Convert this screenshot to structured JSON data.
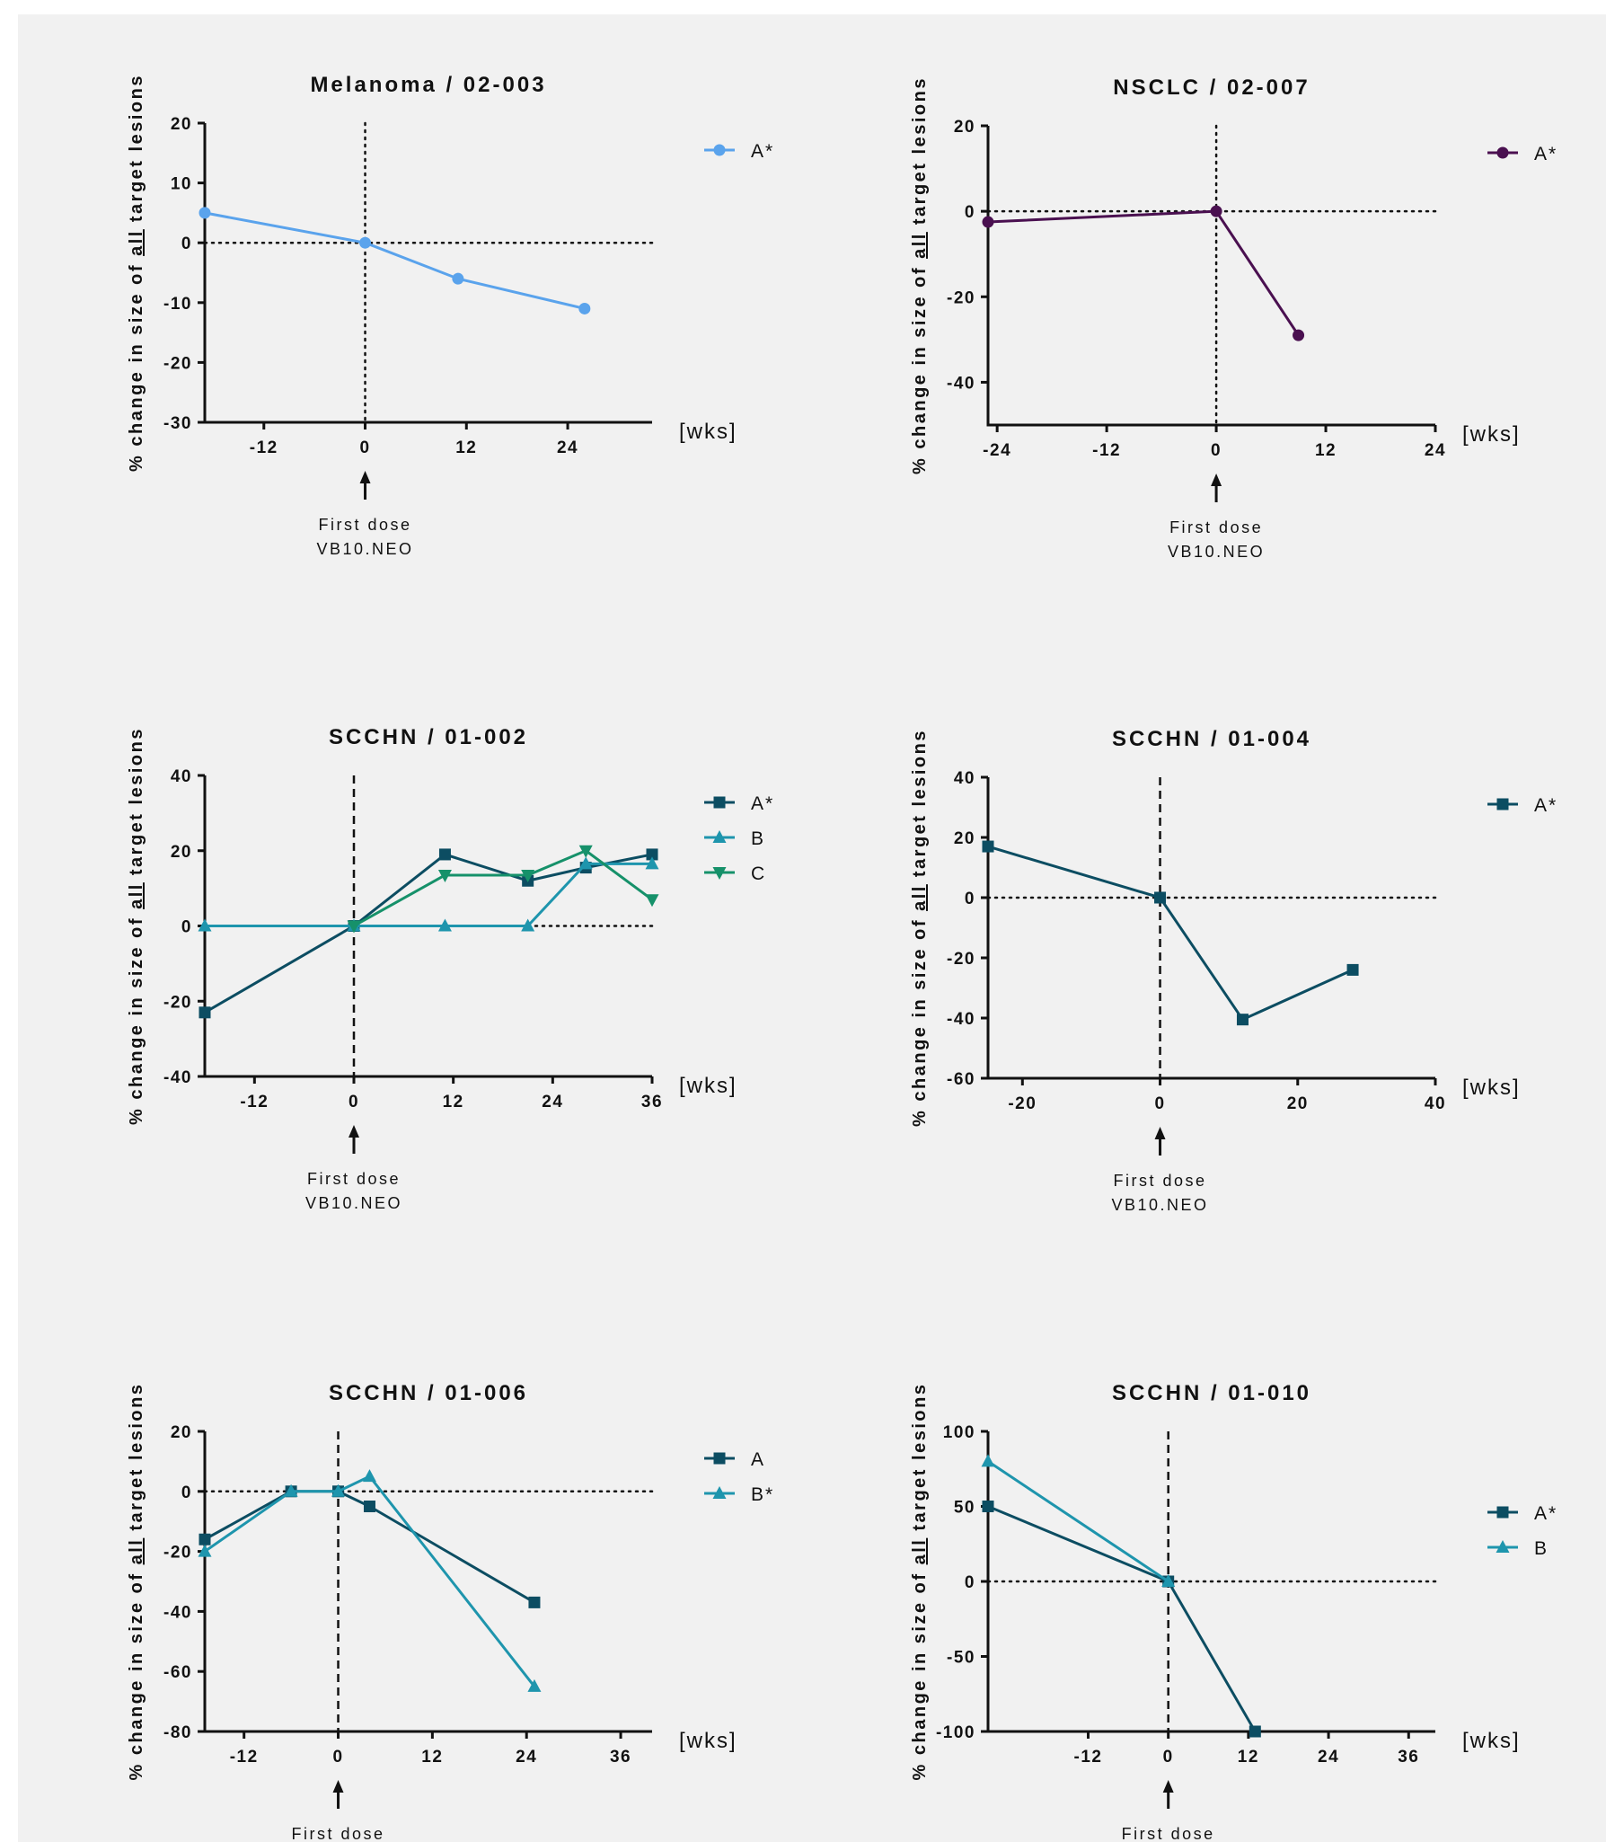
{
  "page": {
    "background": "#f1f1f1"
  },
  "annotation": {
    "arrow_label_line1": "First dose",
    "arrow_label_line2": "VB10.NEO"
  },
  "ylabel_parts": [
    "% change in size of ",
    "all",
    " target lesions"
  ],
  "chart_data": [
    {
      "type": "line",
      "title": "Melanoma / 02-003",
      "xlabel": "[wks]",
      "ylabel": "% change in size of all target lesions",
      "xlim": [
        -19,
        34
      ],
      "ylim": [
        -30,
        20
      ],
      "xticks": [
        -12,
        0,
        12,
        24,
        36
      ],
      "yticks": [
        20,
        10,
        0,
        -10,
        -20,
        -30
      ],
      "zero_line": "dotted",
      "baseline_vline": "dotted",
      "legend_placement": "top-right",
      "series": [
        {
          "name": "A*",
          "color": "#5aa3ec",
          "marker": "circle",
          "x": [
            -23,
            0,
            11,
            26
          ],
          "y": [
            5,
            0,
            -6,
            -11
          ]
        }
      ]
    },
    {
      "type": "line",
      "title": "NSCLC / 02-007",
      "xlabel": "[wks]",
      "ylabel": "% change in size of all target lesions",
      "xlim": [
        -25,
        24
      ],
      "ylim": [
        -50,
        20
      ],
      "xticks": [
        -24,
        -12,
        0,
        12,
        24
      ],
      "yticks": [
        20,
        0,
        -20,
        -40
      ],
      "zero_line": "dotted",
      "baseline_vline": "dotted",
      "legend_placement": "top-right",
      "series": [
        {
          "name": "A*",
          "color": "#4a1050",
          "marker": "circle",
          "x": [
            -25,
            0,
            9
          ],
          "y": [
            -2.5,
            0,
            -29
          ]
        }
      ]
    },
    {
      "type": "line",
      "title": "SCCHN / 01-002",
      "xlabel": "[wks]",
      "ylabel": "% change in size of all target lesions",
      "xlim": [
        -18,
        36
      ],
      "ylim": [
        -40,
        40
      ],
      "xticks": [
        -12,
        0,
        12,
        24,
        36
      ],
      "yticks": [
        40,
        20,
        0,
        -20,
        -40
      ],
      "zero_line": "dotted",
      "baseline_vline": "dashed",
      "legend_placement": "top-right",
      "series": [
        {
          "name": "A*",
          "color": "#0c4d62",
          "marker": "square",
          "x": [
            -22,
            0,
            11,
            21,
            28,
            37
          ],
          "y": [
            -23,
            0,
            19,
            12,
            15.5,
            19
          ]
        },
        {
          "name": "B",
          "color": "#1e95ad",
          "marker": "triangle-up",
          "x": [
            -22,
            0,
            11,
            21,
            28,
            37
          ],
          "y": [
            0,
            0,
            0,
            0,
            16.5,
            16.5
          ]
        },
        {
          "name": "C",
          "color": "#16916a",
          "marker": "triangle-down",
          "x": [
            0,
            11,
            21,
            28,
            37
          ],
          "y": [
            0,
            13.5,
            13.5,
            20,
            7
          ]
        }
      ]
    },
    {
      "type": "line",
      "title": "SCCHN / 01-004",
      "xlabel": "[wks]",
      "ylabel": "% change in size of all target lesions",
      "xlim": [
        -25,
        40
      ],
      "ylim": [
        -60,
        40
      ],
      "xticks": [
        -20,
        0,
        20,
        40
      ],
      "yticks": [
        40,
        20,
        0,
        -20,
        -40,
        -60
      ],
      "zero_line": "dotted",
      "baseline_vline": "dashed",
      "legend_placement": "top-right",
      "series": [
        {
          "name": "A*",
          "color": "#0c4d62",
          "marker": "square",
          "x": [
            -25,
            0,
            12,
            28
          ],
          "y": [
            17,
            0,
            -40.5,
            -24
          ]
        }
      ]
    },
    {
      "type": "line",
      "title": "SCCHN / 01-006",
      "xlabel": "[wks]",
      "ylabel": "% change in size of all target lesions",
      "xlim": [
        -17,
        40
      ],
      "ylim": [
        -80,
        20
      ],
      "xticks": [
        -12,
        0,
        12,
        24,
        36
      ],
      "yticks": [
        20,
        0,
        -20,
        -40,
        -60,
        -80
      ],
      "zero_line": "dotted",
      "baseline_vline": "dashed",
      "legend_placement": "top-right",
      "series": [
        {
          "name": "A",
          "color": "#0c4d62",
          "marker": "square",
          "x": [
            -17,
            -6,
            0,
            4,
            25
          ],
          "y": [
            -16,
            0,
            0,
            -5,
            -37
          ]
        },
        {
          "name": "B*",
          "color": "#1e95ad",
          "marker": "triangle-up",
          "x": [
            -17,
            -6,
            0,
            4,
            25
          ],
          "y": [
            -20,
            0,
            0,
            5,
            -65
          ]
        }
      ]
    },
    {
      "type": "line",
      "title": "SCCHN / 01-010",
      "xlabel": "[wks]",
      "ylabel": "% change in size of all target lesions",
      "xlim": [
        -27,
        40
      ],
      "ylim": [
        -100,
        100
      ],
      "xticks": [
        -12,
        0,
        12,
        24,
        36
      ],
      "yticks": [
        100,
        50,
        0,
        -50,
        -100
      ],
      "zero_line": "dotted",
      "baseline_vline": "dashed",
      "legend_placement": "top-right",
      "series": [
        {
          "name": "A*",
          "color": "#0c4d62",
          "marker": "square",
          "x": [
            -27,
            0,
            13
          ],
          "y": [
            50,
            0,
            -100
          ]
        },
        {
          "name": "B",
          "color": "#1e95ad",
          "marker": "triangle-up",
          "x": [
            -27,
            0
          ],
          "y": [
            80,
            0
          ]
        }
      ]
    }
  ]
}
